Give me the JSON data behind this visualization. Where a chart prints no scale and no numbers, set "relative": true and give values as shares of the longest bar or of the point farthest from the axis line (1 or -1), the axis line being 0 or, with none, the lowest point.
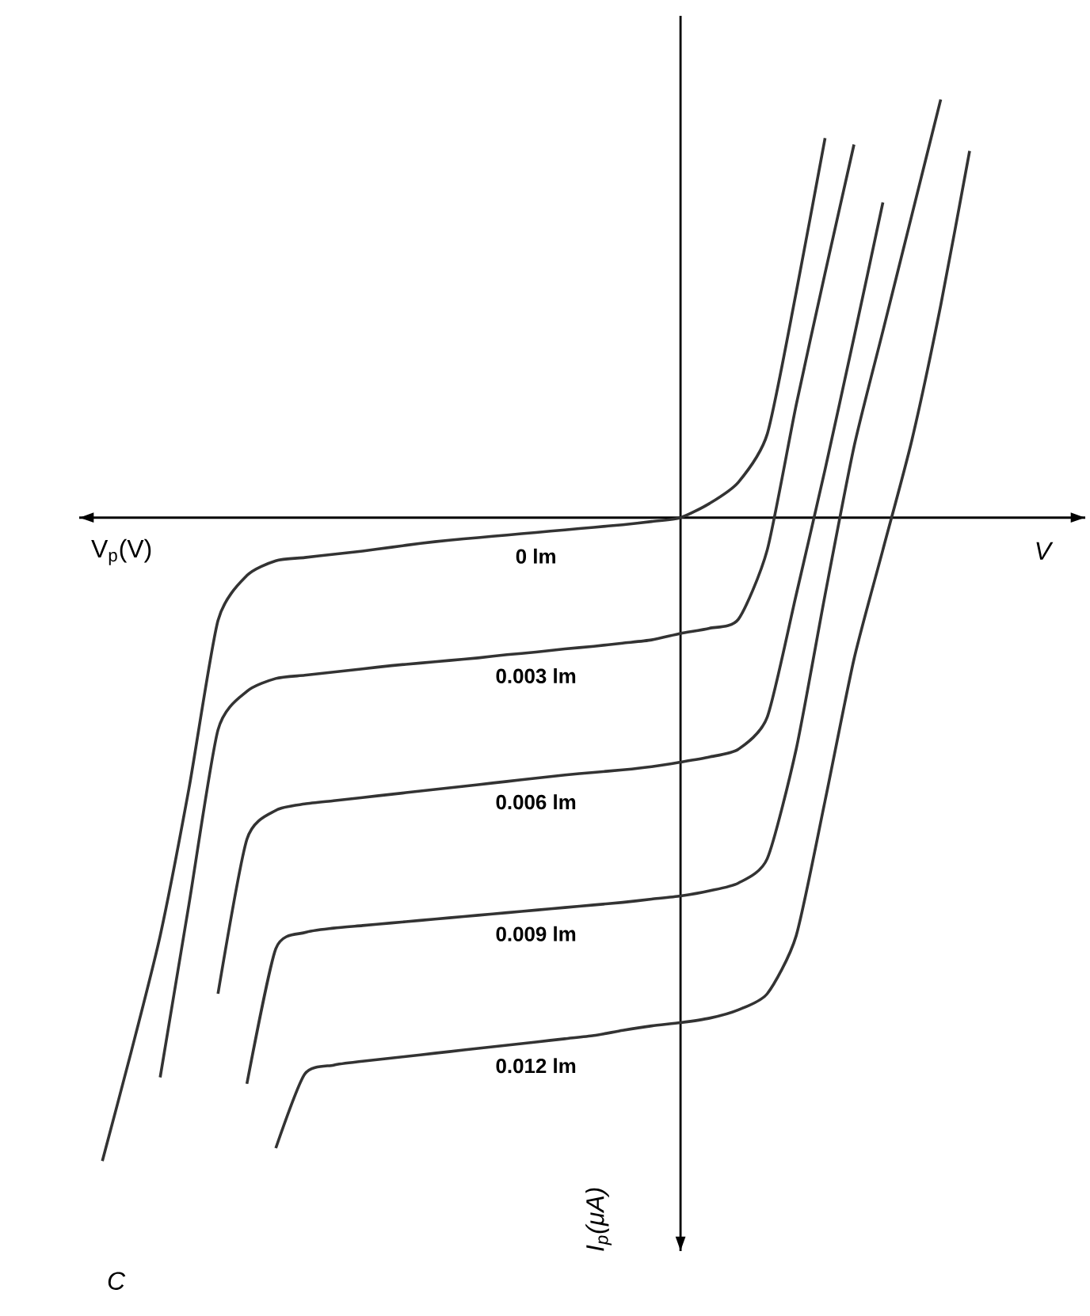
{
  "chart_data": {
    "type": "line",
    "relative": true,
    "marker": "none",
    "line_style": "solid",
    "xlabel": "V",
    "ylabel": "I$_{p}$(μA)",
    "annotations": [
      "V$_{p}$(V)",
      "C"
    ],
    "categories": [
      null,
      null,
      null,
      null,
      null,
      null,
      null,
      null,
      null,
      null,
      null,
      null,
      null,
      null,
      null,
      null,
      null,
      null,
      null,
      null,
      null,
      null,
      null,
      null,
      null,
      null,
      null,
      null,
      null,
      null,
      null,
      null
    ],
    "series": [
      {
        "name": "0 lm",
        "color": "#333333",
        "values": [
          -1.0,
          -0.83,
          -0.65,
          -0.42,
          -0.16,
          -0.09,
          -0.067,
          -0.062,
          -0.057,
          -0.052,
          -0.046,
          -0.04,
          -0.035,
          -0.031,
          -0.027,
          -0.023,
          -0.019,
          -0.015,
          -0.011,
          -0.006,
          0,
          0.022,
          0.055,
          0.13,
          0.35,
          0.59,
          null,
          null,
          null,
          null,
          null,
          null
        ]
      },
      {
        "name": "0.003 lm",
        "color": "#333333",
        "values": [
          null,
          null,
          -0.87,
          -0.6,
          -0.33,
          -0.27,
          -0.25,
          -0.245,
          -0.24,
          -0.235,
          -0.23,
          -0.226,
          -0.222,
          -0.218,
          -0.213,
          -0.209,
          -0.204,
          -0.2,
          -0.195,
          -0.19,
          -0.18,
          -0.172,
          -0.158,
          -0.05,
          0.175,
          0.38,
          0.58,
          null,
          null,
          null,
          null,
          null
        ]
      },
      {
        "name": "0.006 lm",
        "color": "#333333",
        "values": [
          null,
          null,
          null,
          null,
          -0.74,
          -0.5,
          -0.455,
          -0.445,
          -0.44,
          -0.435,
          -0.43,
          -0.425,
          -0.42,
          -0.415,
          -0.41,
          -0.405,
          -0.4,
          -0.396,
          -0.392,
          -0.387,
          -0.38,
          -0.372,
          -0.36,
          -0.31,
          -0.12,
          0.075,
          0.28,
          0.49,
          null,
          null,
          null,
          null
        ]
      },
      {
        "name": "0.009 lm",
        "color": "#333333",
        "values": [
          null,
          null,
          null,
          null,
          null,
          -0.88,
          -0.67,
          -0.645,
          -0.638,
          -0.634,
          -0.63,
          -0.626,
          -0.622,
          -0.618,
          -0.614,
          -0.61,
          -0.606,
          -0.602,
          -0.598,
          -0.593,
          -0.588,
          -0.58,
          -0.568,
          -0.53,
          -0.36,
          -0.12,
          0.11,
          0.29,
          0.47,
          0.65,
          null,
          null
        ]
      },
      {
        "name": "0.012 lm",
        "color": "#333333",
        "values": [
          null,
          null,
          null,
          null,
          null,
          null,
          -0.98,
          -0.865,
          -0.851,
          -0.845,
          -0.84,
          -0.835,
          -0.83,
          -0.825,
          -0.82,
          -0.815,
          -0.81,
          -0.805,
          -0.797,
          -0.79,
          -0.785,
          -0.778,
          -0.765,
          -0.74,
          -0.65,
          -0.44,
          -0.22,
          -0.05,
          0.12,
          0.33,
          0.57,
          null
        ]
      }
    ]
  }
}
